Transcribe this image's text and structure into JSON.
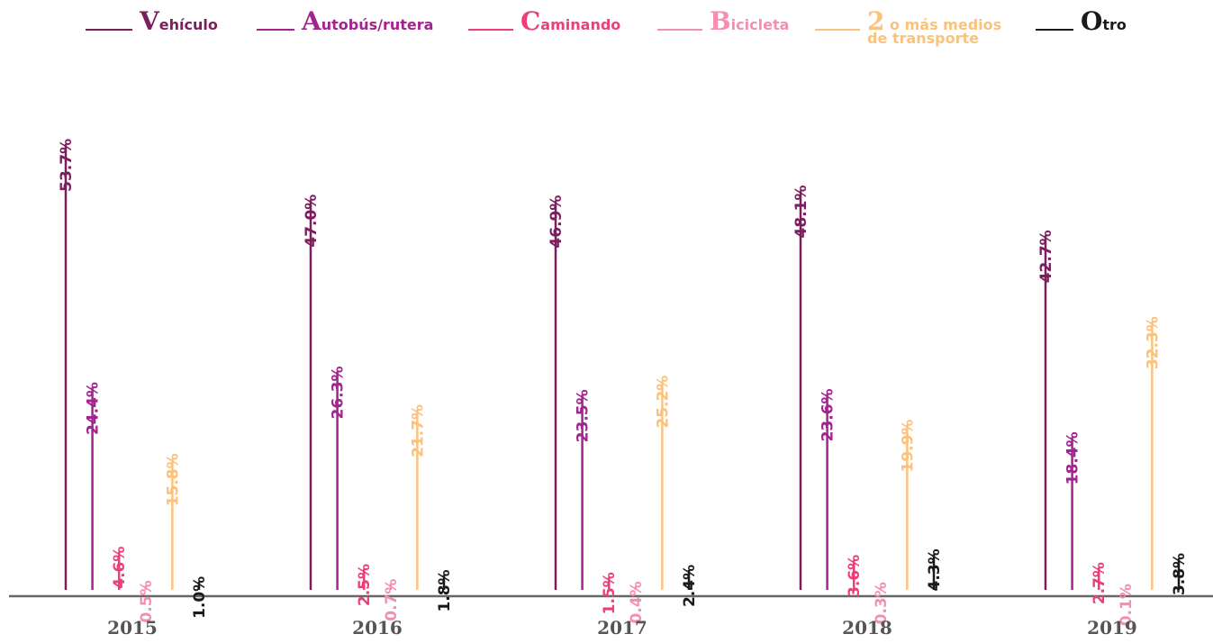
{
  "chart_data": {
    "type": "bar",
    "categories": [
      "2015",
      "2016",
      "2017",
      "2018",
      "2019"
    ],
    "series": [
      {
        "name": "Vehículo",
        "color": "#7b1e5e",
        "values": [
          53.7,
          47.0,
          46.9,
          48.1,
          42.7
        ],
        "value_labels": [
          "53.7%",
          "47.0%",
          "46.9%",
          "48.1%",
          "42.7%"
        ]
      },
      {
        "name": "Autobús/rutera",
        "color": "#a3238f",
        "values": [
          24.4,
          26.3,
          23.5,
          23.6,
          18.4
        ],
        "value_labels": [
          "24.4%",
          "26.3%",
          "23.5%",
          "23.6%",
          "18.4%"
        ]
      },
      {
        "name": "Caminando",
        "color": "#ee3e7a",
        "values": [
          4.6,
          2.5,
          1.5,
          3.6,
          2.7
        ],
        "value_labels": [
          "4.6%",
          "2.5%",
          "1.5%",
          "3.6%",
          "2.7%"
        ]
      },
      {
        "name": "Bicicleta",
        "color": "#f48fb1",
        "values": [
          0.5,
          0.7,
          0.4,
          0.3,
          0.1
        ],
        "value_labels": [
          "0.5%",
          "0.7%",
          "0.4%",
          "0.3%",
          "0.1%"
        ]
      },
      {
        "name": "2 o más medios de transporte",
        "color": "#fbc27e",
        "values": [
          15.8,
          21.7,
          25.2,
          19.9,
          32.3
        ],
        "value_labels": [
          "15.8%",
          "21.7%",
          "25.2%",
          "19.9%",
          "32.3%"
        ]
      },
      {
        "name": "Otro",
        "color": "#1a1a1a",
        "values": [
          1.0,
          1.8,
          2.4,
          4.3,
          3.8
        ],
        "value_labels": [
          "1.0%",
          "1.8%",
          "2.4%",
          "4.3%",
          "3.8%"
        ]
      }
    ]
  }
}
